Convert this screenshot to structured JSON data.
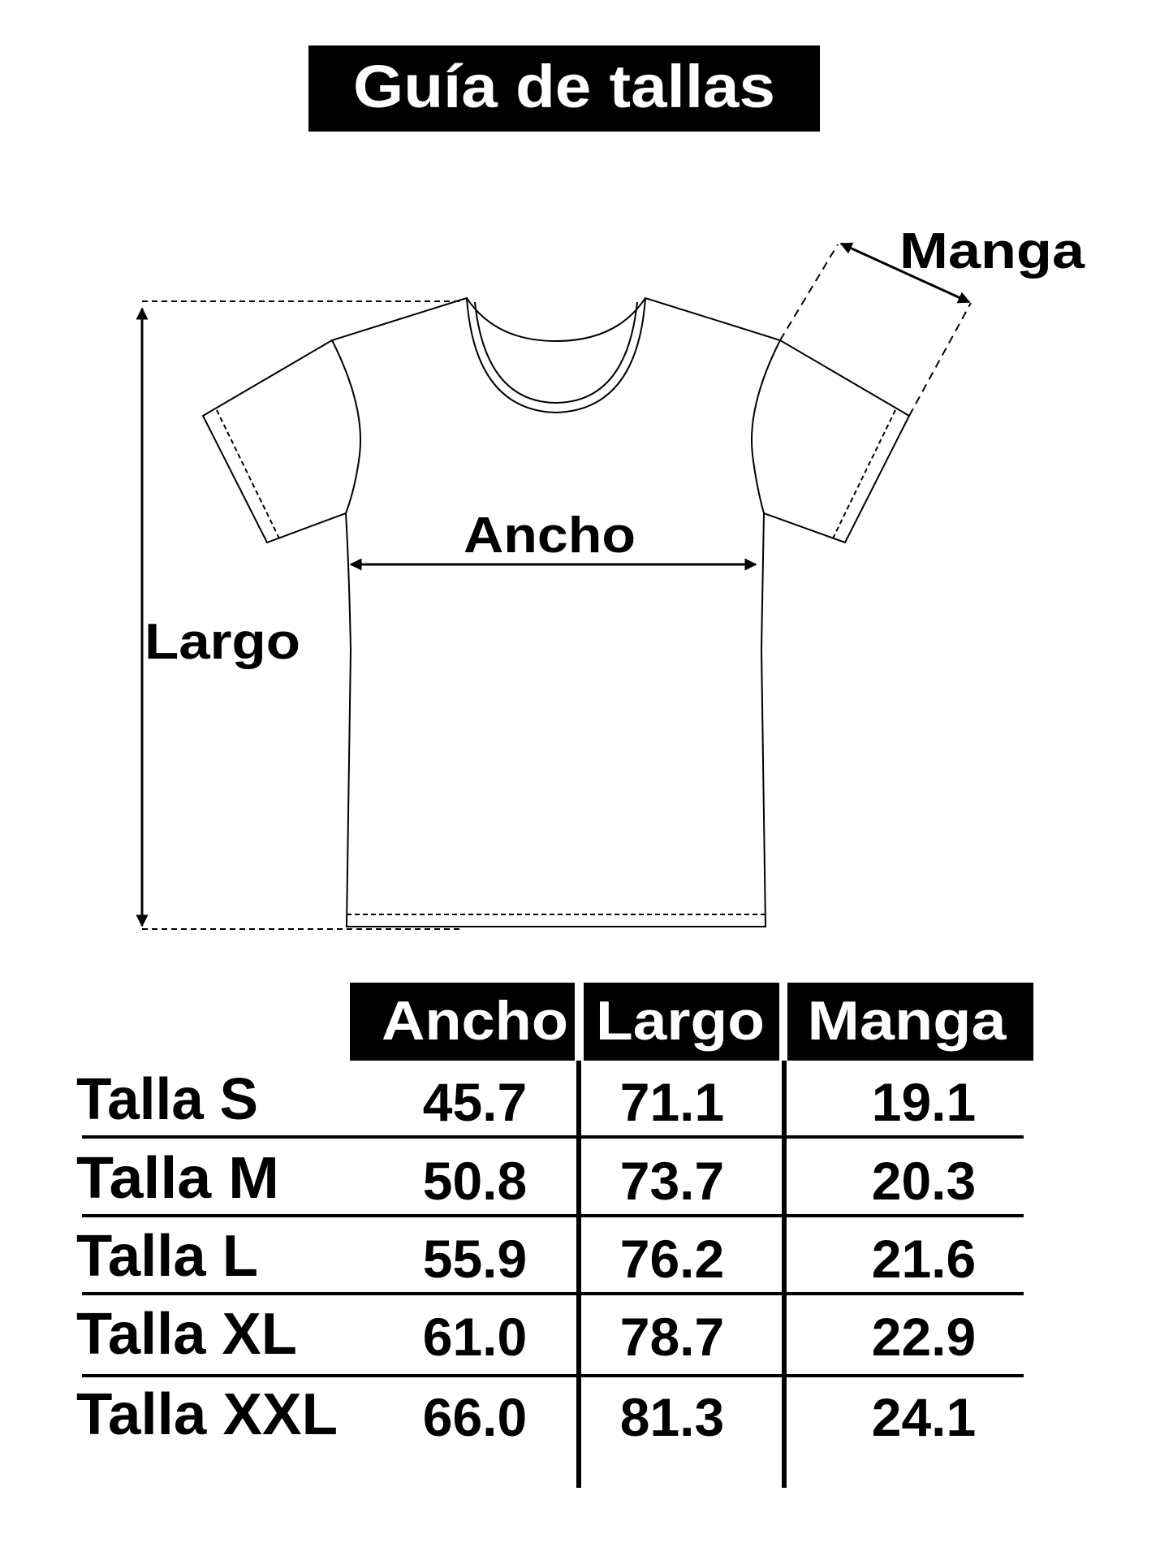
{
  "title": "Guía de tallas",
  "diagram": {
    "ancho_label": "Ancho",
    "largo_label": "Largo",
    "manga_label": "Manga"
  },
  "table": {
    "headers": [
      "Ancho",
      "Largo",
      "Manga"
    ],
    "rows": [
      {
        "label": "Talla S",
        "values": [
          "45.7",
          "71.1",
          "19.1"
        ]
      },
      {
        "label": "Talla M",
        "values": [
          "50.8",
          "73.7",
          "20.3"
        ]
      },
      {
        "label": "Talla L",
        "values": [
          "55.9",
          "76.2",
          "21.6"
        ]
      },
      {
        "label": "Talla XL",
        "values": [
          "61.0",
          "78.7",
          "22.9"
        ]
      },
      {
        "label": "Talla XXL",
        "values": [
          "66.0",
          "81.3",
          "24.1"
        ]
      }
    ]
  },
  "colors": {
    "ink": "#000000",
    "background": "#ffffff"
  }
}
